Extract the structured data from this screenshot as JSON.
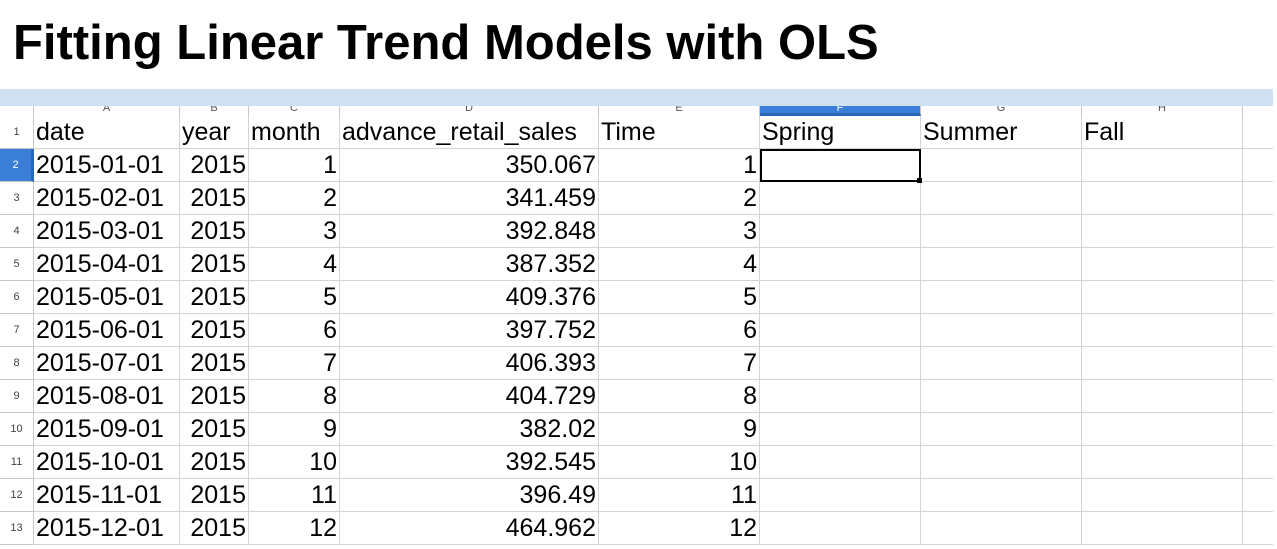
{
  "title": "Fitting Linear Trend Models with OLS",
  "columns": [
    "A",
    "B",
    "C",
    "D",
    "E",
    "F",
    "G",
    "H"
  ],
  "selected_column": "F",
  "selected_row": "2",
  "header_row": {
    "row_label": "1",
    "cells": [
      "date",
      "year",
      "month",
      "advance_retail_sales",
      "Time",
      "Spring",
      "Summer",
      "Fall"
    ]
  },
  "rows": [
    {
      "row_label": "2",
      "date": "2015-01-01",
      "year": "2015",
      "month": "1",
      "sales": "350.067",
      "time": "1"
    },
    {
      "row_label": "3",
      "date": "2015-02-01",
      "year": "2015",
      "month": "2",
      "sales": "341.459",
      "time": "2"
    },
    {
      "row_label": "4",
      "date": "2015-03-01",
      "year": "2015",
      "month": "3",
      "sales": "392.848",
      "time": "3"
    },
    {
      "row_label": "5",
      "date": "2015-04-01",
      "year": "2015",
      "month": "4",
      "sales": "387.352",
      "time": "4"
    },
    {
      "row_label": "6",
      "date": "2015-05-01",
      "year": "2015",
      "month": "5",
      "sales": "409.376",
      "time": "5"
    },
    {
      "row_label": "7",
      "date": "2015-06-01",
      "year": "2015",
      "month": "6",
      "sales": "397.752",
      "time": "6"
    },
    {
      "row_label": "8",
      "date": "2015-07-01",
      "year": "2015",
      "month": "7",
      "sales": "406.393",
      "time": "7"
    },
    {
      "row_label": "9",
      "date": "2015-08-01",
      "year": "2015",
      "month": "8",
      "sales": "404.729",
      "time": "8"
    },
    {
      "row_label": "10",
      "date": "2015-09-01",
      "year": "2015",
      "month": "9",
      "sales": "382.02",
      "time": "9"
    },
    {
      "row_label": "11",
      "date": "2015-10-01",
      "year": "2015",
      "month": "10",
      "sales": "392.545",
      "time": "10"
    },
    {
      "row_label": "12",
      "date": "2015-11-01",
      "year": "2015",
      "month": "11",
      "sales": "396.49",
      "time": "11"
    },
    {
      "row_label": "13",
      "date": "2015-12-01",
      "year": "2015",
      "month": "12",
      "sales": "464.962",
      "time": "12"
    }
  ],
  "colors": {
    "selection_accent": "#3a7ed8",
    "title_bar_band": "#cfe0f2",
    "grid_line": "#d4d4d4"
  }
}
